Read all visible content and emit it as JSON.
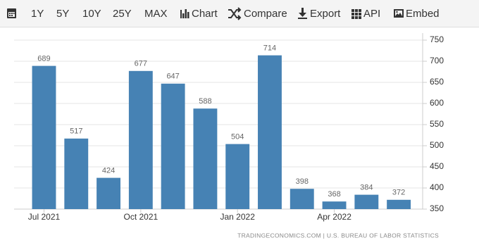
{
  "toolbar": {
    "ranges": [
      "1Y",
      "5Y",
      "10Y",
      "25Y",
      "MAX"
    ],
    "buttons": [
      "Chart",
      "Compare",
      "Export",
      "API",
      "Embed"
    ]
  },
  "chart_data": {
    "type": "bar",
    "categories": [
      "Jul 2021",
      null,
      null,
      "Oct 2021",
      null,
      null,
      "Jan 2022",
      null,
      null,
      "Apr 2022",
      null,
      null
    ],
    "values": [
      689,
      517,
      424,
      677,
      647,
      588,
      504,
      714,
      398,
      368,
      384,
      372
    ],
    "color": "#4682b4",
    "ylim": [
      350,
      750
    ],
    "yticks": [
      350,
      400,
      450,
      500,
      550,
      600,
      650,
      700,
      750
    ],
    "grid": true,
    "source": "TRADINGECONOMICS.COM | U.S. BUREAU OF LABOR STATISTICS"
  }
}
